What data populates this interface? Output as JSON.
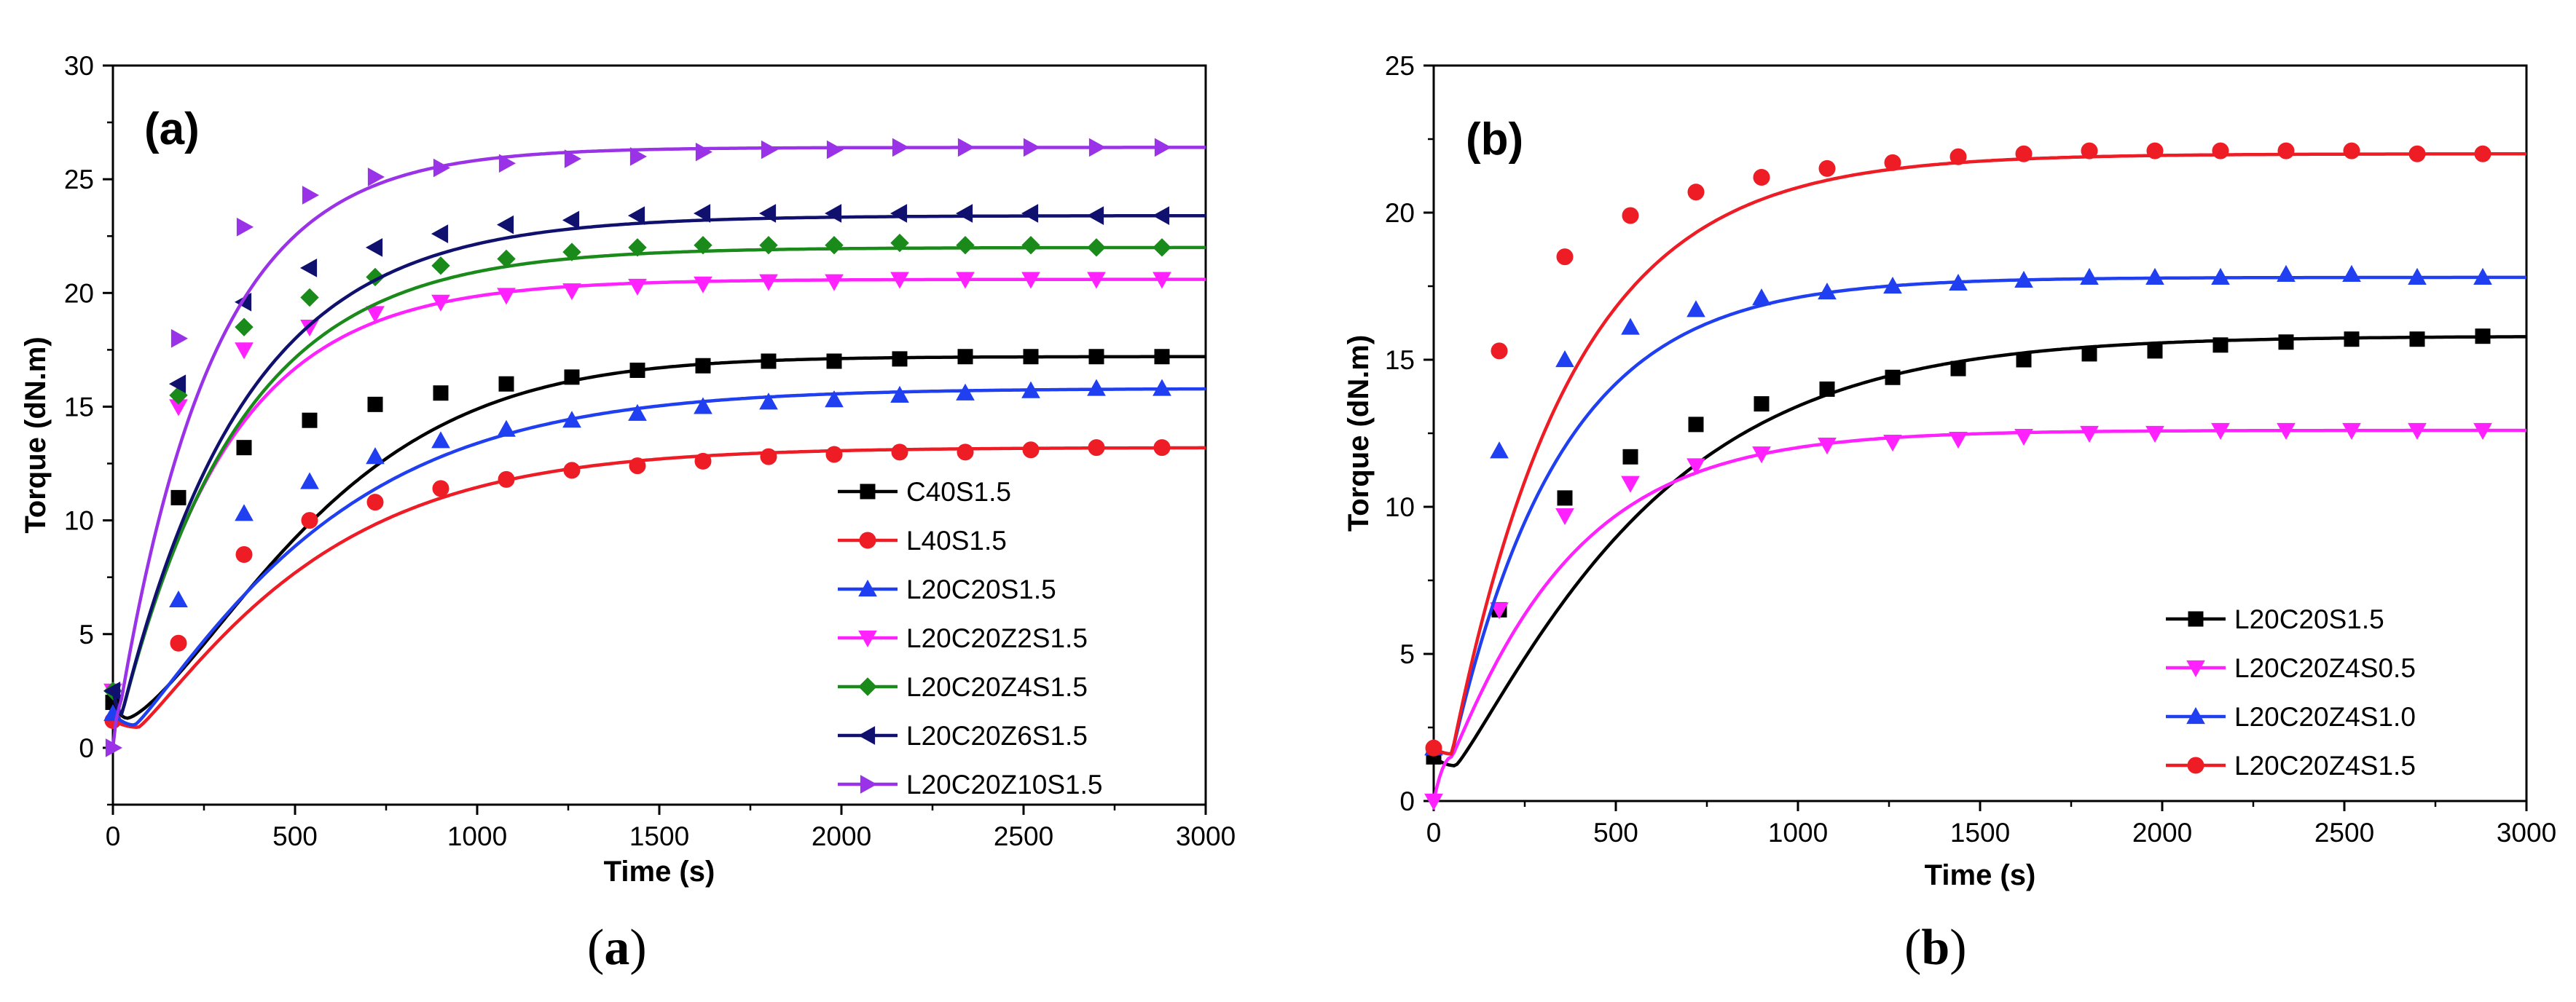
{
  "colors": {
    "black": "#000000",
    "red": "#ee1c25",
    "blue": "#1f3ff0",
    "magenta": "#ff22ff",
    "green": "#1a8a1a",
    "navy": "#10106e",
    "purple": "#9a32e8"
  },
  "captions": {
    "a": {
      "open": "(",
      "letter": "a",
      "close": ")"
    },
    "b": {
      "open": "(",
      "letter": "b",
      "close": ")"
    }
  },
  "chart_data": [
    {
      "id": "a",
      "type": "line",
      "panel_label": "(a)",
      "xlabel": "Time (s)",
      "ylabel": "Torque (dN.m)",
      "xlim": [
        0,
        3000
      ],
      "ylim": [
        -2.5,
        30
      ],
      "xticks": [
        0,
        500,
        1000,
        1500,
        2000,
        2500,
        3000
      ],
      "yticks": [
        0,
        5,
        10,
        15,
        20,
        25,
        30
      ],
      "legend_position": "lower-right",
      "series": [
        {
          "name": "C40S1.5",
          "color": "#000000",
          "marker": "square",
          "min_t": 40,
          "min_v": 1.3,
          "final": 17.2,
          "tau": 600,
          "k": 1.4,
          "x": [
            0,
            180,
            360,
            540,
            720,
            900,
            1080,
            1260,
            1440,
            1620,
            1800,
            1980,
            2160,
            2340,
            2520,
            2700,
            2880
          ],
          "y": [
            2.0,
            11.0,
            13.2,
            14.4,
            15.1,
            15.6,
            16.0,
            16.3,
            16.6,
            16.8,
            17.0,
            17.0,
            17.1,
            17.2,
            17.2,
            17.2,
            17.2
          ]
        },
        {
          "name": "L40S1.5",
          "color": "#ee1c25",
          "marker": "circle",
          "min_t": 70,
          "min_v": 0.9,
          "final": 13.2,
          "tau": 520,
          "k": 1.15,
          "x": [
            0,
            180,
            360,
            540,
            720,
            900,
            1080,
            1260,
            1440,
            1620,
            1800,
            1980,
            2160,
            2340,
            2520,
            2700,
            2880
          ],
          "y": [
            1.2,
            4.6,
            8.5,
            10.0,
            10.8,
            11.4,
            11.8,
            12.2,
            12.4,
            12.6,
            12.8,
            12.9,
            13.0,
            13.0,
            13.1,
            13.2,
            13.2
          ]
        },
        {
          "name": "L20C20S1.5",
          "color": "#1f3ff0",
          "marker": "triangle-up",
          "min_t": 60,
          "min_v": 1.0,
          "final": 15.8,
          "tau": 560,
          "k": 1.15,
          "x": [
            0,
            180,
            360,
            540,
            720,
            900,
            1080,
            1260,
            1440,
            1620,
            1800,
            1980,
            2160,
            2340,
            2520,
            2700,
            2880
          ],
          "y": [
            1.5,
            6.5,
            10.3,
            11.7,
            12.8,
            13.5,
            14.0,
            14.4,
            14.7,
            15.0,
            15.2,
            15.3,
            15.5,
            15.6,
            15.7,
            15.8,
            15.8
          ]
        },
        {
          "name": "L20C20Z2S1.5",
          "color": "#ff22ff",
          "marker": "triangle-down",
          "min_t": 25,
          "min_v": 1.5,
          "final": 20.6,
          "tau": 300,
          "k": 1.0,
          "x": [
            0,
            180,
            360,
            540,
            720,
            900,
            1080,
            1260,
            1440,
            1620,
            1800,
            1980,
            2160,
            2340,
            2520,
            2700,
            2880
          ],
          "y": [
            2.5,
            15.0,
            17.5,
            18.5,
            19.1,
            19.6,
            19.9,
            20.1,
            20.3,
            20.4,
            20.5,
            20.5,
            20.6,
            20.6,
            20.6,
            20.6,
            20.6
          ]
        },
        {
          "name": "L20C20Z4S1.5",
          "color": "#1a8a1a",
          "marker": "diamond",
          "min_t": 25,
          "min_v": 1.5,
          "final": 22.0,
          "tau": 330,
          "k": 1.0,
          "x": [
            0,
            180,
            360,
            540,
            720,
            900,
            1080,
            1260,
            1440,
            1620,
            1800,
            1980,
            2160,
            2340,
            2520,
            2700,
            2880
          ],
          "y": [
            2.5,
            15.5,
            18.5,
            19.8,
            20.7,
            21.2,
            21.5,
            21.8,
            22.0,
            22.1,
            22.1,
            22.1,
            22.2,
            22.1,
            22.1,
            22.0,
            22.0
          ]
        },
        {
          "name": "L20C20Z6S1.5",
          "color": "#10106e",
          "marker": "triangle-left",
          "min_t": 25,
          "min_v": 1.5,
          "final": 23.4,
          "tau": 340,
          "k": 1.0,
          "x": [
            0,
            180,
            360,
            540,
            720,
            900,
            1080,
            1260,
            1440,
            1620,
            1800,
            1980,
            2160,
            2340,
            2520,
            2700,
            2880
          ],
          "y": [
            2.5,
            16.0,
            19.6,
            21.1,
            22.0,
            22.6,
            23.0,
            23.2,
            23.4,
            23.5,
            23.5,
            23.5,
            23.5,
            23.5,
            23.5,
            23.4,
            23.4
          ]
        },
        {
          "name": "L20C20Z10S1.5",
          "color": "#9a32e8",
          "marker": "triangle-right",
          "min_t": 20,
          "min_v": 1.8,
          "final": 26.4,
          "tau": 260,
          "k": 1.0,
          "x": [
            0,
            180,
            360,
            540,
            720,
            900,
            1080,
            1260,
            1440,
            1620,
            1800,
            1980,
            2160,
            2340,
            2520,
            2700,
            2880
          ],
          "y": [
            0.0,
            18.0,
            22.9,
            24.3,
            25.1,
            25.5,
            25.7,
            25.9,
            26.0,
            26.2,
            26.3,
            26.3,
            26.4,
            26.4,
            26.4,
            26.4,
            26.4
          ]
        }
      ]
    },
    {
      "id": "b",
      "type": "line",
      "panel_label": "(b)",
      "xlabel": "Time (s)",
      "ylabel": "Torque (dN.m)",
      "xlim": [
        0,
        3000
      ],
      "ylim": [
        0,
        25
      ],
      "xticks": [
        0,
        500,
        1000,
        1500,
        2000,
        2500,
        3000
      ],
      "yticks": [
        0,
        5,
        10,
        15,
        20,
        25
      ],
      "legend_position": "lower-right",
      "series": [
        {
          "name": "L20C20S1.5",
          "color": "#000000",
          "marker": "square",
          "min_t": 60,
          "min_v": 1.2,
          "final": 15.8,
          "tau": 560,
          "k": 1.15,
          "x": [
            0,
            180,
            360,
            540,
            720,
            900,
            1080,
            1260,
            1440,
            1620,
            1800,
            1980,
            2160,
            2340,
            2520,
            2700,
            2880
          ],
          "y": [
            1.5,
            6.5,
            10.3,
            11.7,
            12.8,
            13.5,
            14.0,
            14.4,
            14.7,
            15.0,
            15.2,
            15.3,
            15.5,
            15.6,
            15.7,
            15.7,
            15.8
          ]
        },
        {
          "name": "L20C20Z4S0.5",
          "color": "#ff22ff",
          "marker": "triangle-down",
          "min_t": 50,
          "min_v": 1.5,
          "final": 12.6,
          "tau": 340,
          "k": 1.05,
          "x": [
            0,
            180,
            360,
            540,
            720,
            900,
            1080,
            1260,
            1440,
            1620,
            1800,
            1980,
            2160,
            2340,
            2520,
            2700,
            2880
          ],
          "y": [
            0.0,
            6.5,
            9.7,
            10.8,
            11.4,
            11.8,
            12.1,
            12.2,
            12.3,
            12.4,
            12.5,
            12.5,
            12.6,
            12.6,
            12.6,
            12.6,
            12.6
          ]
        },
        {
          "name": "L20C20Z4S1.0",
          "color": "#1f3ff0",
          "marker": "triangle-up",
          "min_t": 50,
          "min_v": 1.6,
          "final": 17.8,
          "tau": 300,
          "k": 1.0,
          "x": [
            0,
            180,
            360,
            540,
            720,
            900,
            1080,
            1260,
            1440,
            1620,
            1800,
            1980,
            2160,
            2340,
            2520,
            2700,
            2880
          ],
          "y": [
            1.8,
            11.9,
            15.0,
            16.1,
            16.7,
            17.1,
            17.3,
            17.5,
            17.6,
            17.7,
            17.8,
            17.8,
            17.8,
            17.9,
            17.9,
            17.8,
            17.8
          ]
        },
        {
          "name": "L20C20Z4S1.5",
          "color": "#ee1c25",
          "marker": "circle",
          "min_t": 50,
          "min_v": 1.6,
          "final": 22.0,
          "tau": 330,
          "k": 1.0,
          "x": [
            0,
            180,
            360,
            540,
            720,
            900,
            1080,
            1260,
            1440,
            1620,
            1800,
            1980,
            2160,
            2340,
            2520,
            2700,
            2880
          ],
          "y": [
            1.8,
            15.3,
            18.5,
            19.9,
            20.7,
            21.2,
            21.5,
            21.7,
            21.9,
            22.0,
            22.1,
            22.1,
            22.1,
            22.1,
            22.1,
            22.0,
            22.0
          ]
        }
      ]
    }
  ]
}
